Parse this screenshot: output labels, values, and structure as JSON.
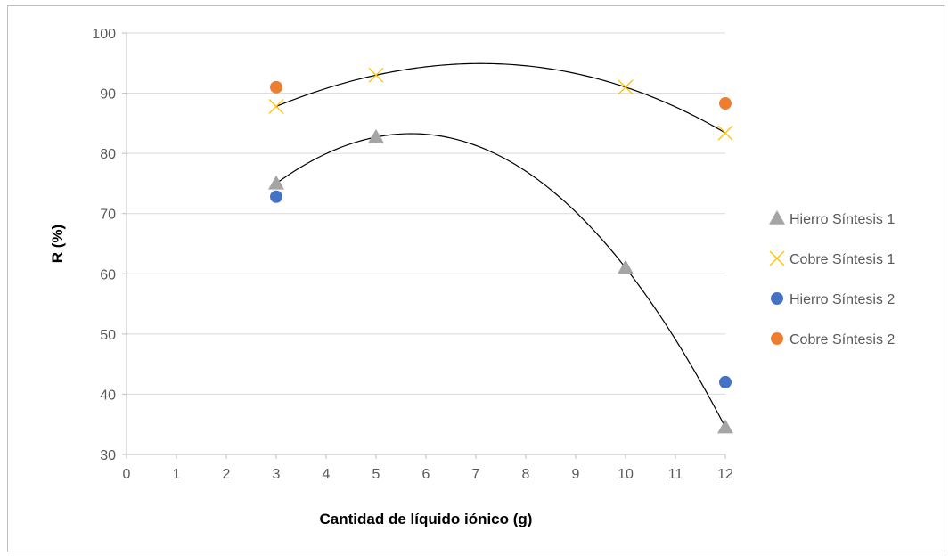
{
  "chart_data": {
    "type": "scatter",
    "xlabel": "Cantidad de líquido iónico (g)",
    "ylabel": "R  (%)",
    "xlim": [
      0,
      12
    ],
    "ylim": [
      30,
      100
    ],
    "x_ticks": [
      "0",
      "1",
      "2",
      "3",
      "4",
      "5",
      "6",
      "7",
      "8",
      "9",
      "10",
      "11",
      "12"
    ],
    "y_ticks": [
      "30",
      "40",
      "50",
      "60",
      "70",
      "80",
      "90",
      "100"
    ],
    "grid": "horizontal",
    "legend_position": "right",
    "series": [
      {
        "name": "Hierro Síntesis 1",
        "marker": "triangle",
        "color": "#a5a5a5",
        "x": [
          3,
          5,
          10,
          12
        ],
        "y": [
          75,
          82.7,
          61,
          34.5
        ]
      },
      {
        "name": "Cobre Síntesis 1",
        "marker": "x",
        "color": "#ffc000",
        "x": [
          3,
          5,
          10,
          12
        ],
        "y": [
          87.8,
          93,
          91,
          83.4
        ]
      },
      {
        "name": "Hierro Síntesis 2",
        "marker": "circle",
        "color": "#4472c4",
        "x": [
          3,
          12
        ],
        "y": [
          72.8,
          42
        ]
      },
      {
        "name": "Cobre Síntesis 2",
        "marker": "circle",
        "color": "#ed7d31",
        "x": [
          3,
          12
        ],
        "y": [
          91,
          88.3
        ]
      }
    ],
    "trendlines": [
      {
        "series": "Cobre Síntesis 1",
        "type": "polynomial",
        "x_from": 3,
        "x_to": 12
      },
      {
        "series": "Hierro Síntesis 1",
        "type": "polynomial",
        "x_from": 3,
        "x_to": 12
      }
    ]
  }
}
